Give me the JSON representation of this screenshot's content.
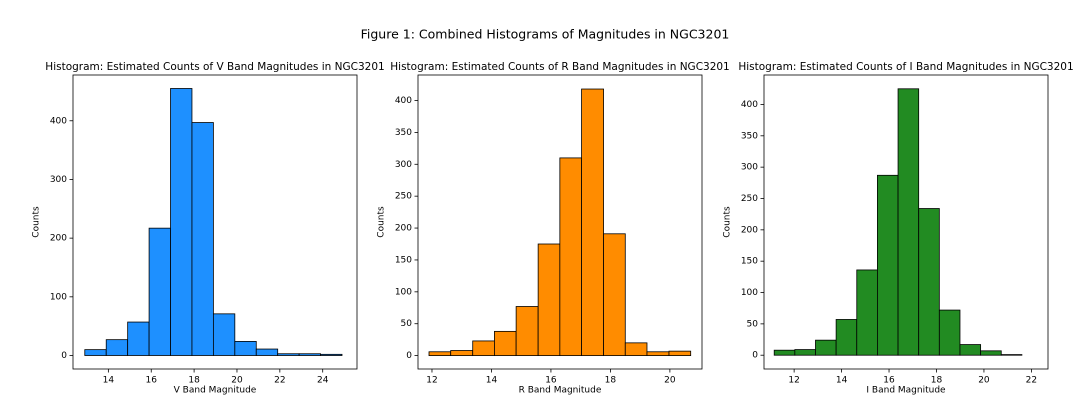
{
  "title": "Figure 1: Combined Histograms of Magnitudes in NGC3201",
  "chart_data": [
    {
      "type": "histogram",
      "title": "Histogram: Estimated Counts of V Band Magnitudes in NGC3201",
      "x_label": "V Band Magnitude",
      "y_label": "Counts",
      "color": "#1e90ff",
      "bins": [
        12.9,
        13.9,
        14.9,
        15.9,
        16.9,
        17.9,
        18.9,
        19.9,
        20.9,
        21.9,
        22.9,
        23.9,
        24.9
      ],
      "counts": [
        10,
        27,
        57,
        217,
        455,
        397,
        71,
        24,
        11,
        3,
        3,
        2
      ],
      "xlim": [
        12.35,
        25.6
      ],
      "xticks": [
        14,
        16,
        18,
        20,
        22,
        24
      ],
      "ylim": [
        -23,
        478
      ],
      "yticks": [
        0,
        100,
        200,
        300,
        400
      ]
    },
    {
      "type": "histogram",
      "title": "Histogram: Estimated Counts of R Band Magnitudes in NGC3201",
      "x_label": "R Band Magnitude",
      "y_label": "Counts",
      "color": "#ff8c00",
      "bins": [
        11.9,
        12.63,
        13.37,
        14.1,
        14.83,
        15.57,
        16.3,
        17.03,
        17.77,
        18.5,
        19.23,
        19.97,
        20.7
      ],
      "counts": [
        6,
        8,
        23,
        38,
        77,
        175,
        310,
        418,
        191,
        20,
        6,
        7
      ],
      "xlim": [
        11.53,
        21.08
      ],
      "xticks": [
        12,
        14,
        16,
        18,
        20
      ],
      "ylim": [
        -21,
        440
      ],
      "yticks": [
        0,
        50,
        100,
        150,
        200,
        250,
        300,
        350,
        400
      ]
    },
    {
      "type": "histogram",
      "title": "Histogram: Estimated Counts of I Band Magnitudes in NGC3201",
      "x_label": "I Band Magnitude",
      "y_label": "Counts",
      "color": "#228b22",
      "bins": [
        11.16,
        12.03,
        12.9,
        13.77,
        14.64,
        15.51,
        16.38,
        17.25,
        18.12,
        18.99,
        19.86,
        20.73,
        21.6
      ],
      "counts": [
        8,
        9,
        24,
        57,
        136,
        287,
        425,
        234,
        72,
        17,
        7,
        1
      ],
      "xlim": [
        10.73,
        22.7
      ],
      "xticks": [
        12,
        14,
        16,
        18,
        20,
        22
      ],
      "ylim": [
        -22,
        447
      ],
      "yticks": [
        0,
        50,
        100,
        150,
        200,
        250,
        300,
        350,
        400
      ]
    }
  ]
}
